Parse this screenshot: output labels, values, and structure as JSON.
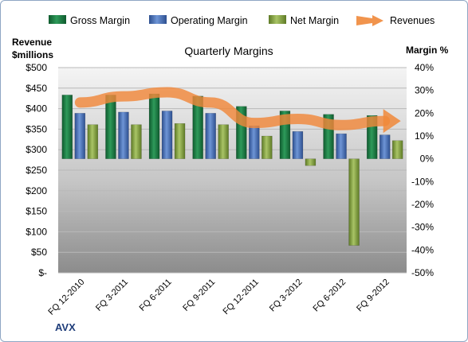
{
  "chart_data": {
    "type": "bar",
    "title": "Quarterly Margins",
    "company": "AVX",
    "ylabel_left": [
      "Revenue",
      "$millions"
    ],
    "ylabel_right": "Margin %",
    "ylim_left": [
      0,
      500
    ],
    "ylim_right": [
      -50,
      40
    ],
    "left_ticks": [
      "$-",
      "$50",
      "$100",
      "$150",
      "$200",
      "$250",
      "$300",
      "$350",
      "$400",
      "$450",
      "$500"
    ],
    "right_ticks": [
      "40%",
      "30%",
      "20%",
      "10%",
      "0%",
      "-10%",
      "-20%",
      "-30%",
      "-40%",
      "-50%"
    ],
    "categories": [
      "FQ 12-2010",
      "FQ 3-2011",
      "FQ 6-2011",
      "FQ 9-2011",
      "FQ 12-2011",
      "FQ 3-2012",
      "FQ 6-2012",
      "FQ 9-2012"
    ],
    "legend_position": "top",
    "grid": true,
    "series": [
      {
        "name": "Gross Margin",
        "axis": "right",
        "color": "#1f7a45",
        "values": [
          28,
          28,
          28.5,
          27.5,
          23,
          21,
          19.5,
          19
        ]
      },
      {
        "name": "Operating Margin",
        "axis": "right",
        "color": "#4a72b8",
        "values": [
          20,
          20.5,
          21,
          20,
          14.5,
          12,
          11,
          10.5
        ]
      },
      {
        "name": "Net Margin",
        "axis": "right",
        "color": "#8aa548",
        "values": [
          15,
          15,
          15.5,
          15,
          10,
          -3,
          -38,
          8
        ]
      },
      {
        "name": "Revenues",
        "axis": "left",
        "type": "line",
        "color": "#f0883a",
        "values": [
          415,
          430,
          440,
          415,
          365,
          375,
          360,
          370
        ]
      }
    ]
  }
}
